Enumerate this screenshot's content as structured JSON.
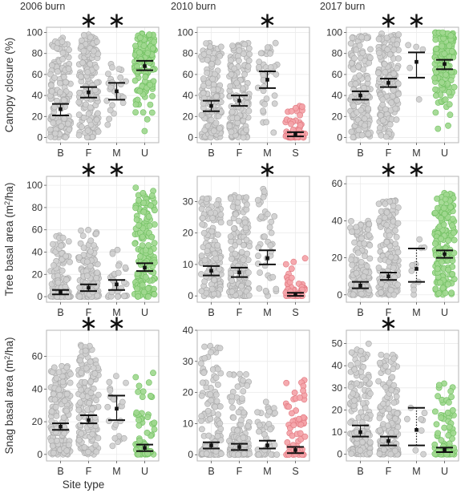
{
  "figure": {
    "xlabel": "Site type",
    "columns": [
      "2006 burn",
      "2010 burn",
      "2017 burn"
    ],
    "row_ylabels": [
      "Canopy closure (%)",
      "Tree basal area (m²/ha)",
      "Snag basal area (m²/ha)"
    ],
    "colors": {
      "grey_fill": "#cfcfcf",
      "grey_stroke": "#a8a8a8",
      "green_fill": "#9fd88f",
      "green_stroke": "#6fbf5f",
      "red_fill": "#f4a3a8",
      "red_stroke": "#e0767e",
      "panel_border": "#b5b5b5",
      "grid": "#ebebeb",
      "axis_text": "#333333"
    }
  },
  "chart_data": [
    {
      "type": "scatter",
      "row": 0,
      "col": 0,
      "column_title": "2006 burn",
      "ylabel": "Canopy closure (%)",
      "categories": [
        "B",
        "F",
        "M",
        "U"
      ],
      "ylim": [
        -5,
        105
      ],
      "yticks": [
        0,
        20,
        40,
        60,
        80,
        100
      ],
      "point_colors": [
        "grey",
        "grey",
        "grey",
        "green"
      ],
      "significant": [
        "F",
        "M"
      ],
      "groups": [
        {
          "category": "B",
          "n": 150,
          "range": [
            0,
            95
          ],
          "skew": 1.4,
          "mean": 27,
          "ci": [
            21,
            32
          ],
          "ci_style": "solid"
        },
        {
          "category": "F",
          "n": 150,
          "range": [
            0,
            98
          ],
          "skew": 1.0,
          "mean": 43,
          "ci": [
            38,
            48
          ],
          "ci_style": "solid"
        },
        {
          "category": "M",
          "n": 25,
          "range": [
            12,
            70
          ],
          "skew": 1.0,
          "mean": 44,
          "ci": [
            36,
            52
          ],
          "ci_style": "solid"
        },
        {
          "category": "U",
          "n": 140,
          "range": [
            0,
            99
          ],
          "skew": 0.45,
          "mean": 68,
          "ci": [
            64,
            73
          ],
          "ci_style": "solid"
        }
      ]
    },
    {
      "type": "scatter",
      "row": 0,
      "col": 1,
      "column_title": "2010 burn",
      "ylabel": "",
      "categories": [
        "B",
        "F",
        "M",
        "S"
      ],
      "ylim": [
        -5,
        105
      ],
      "yticks": [
        0,
        20,
        40,
        60,
        80,
        100
      ],
      "point_colors": [
        "grey",
        "grey",
        "grey",
        "red"
      ],
      "significant": [
        "M"
      ],
      "groups": [
        {
          "category": "B",
          "n": 150,
          "range": [
            0,
            90
          ],
          "skew": 1.5,
          "mean": 30,
          "ci": [
            25,
            35
          ],
          "ci_style": "solid"
        },
        {
          "category": "F",
          "n": 150,
          "range": [
            0,
            90
          ],
          "skew": 1.3,
          "mean": 35,
          "ci": [
            30,
            40
          ],
          "ci_style": "solid"
        },
        {
          "category": "M",
          "n": 40,
          "range": [
            4,
            90
          ],
          "skew": 0.8,
          "mean": 55,
          "ci": [
            47,
            63
          ],
          "ci_style": "solid"
        },
        {
          "category": "S",
          "n": 50,
          "range": [
            0,
            30
          ],
          "skew": 2.5,
          "mean": 3,
          "ci": [
            1,
            5
          ],
          "ci_style": "solid"
        }
      ]
    },
    {
      "type": "scatter",
      "row": 0,
      "col": 2,
      "column_title": "2017 burn",
      "ylabel": "",
      "categories": [
        "B",
        "F",
        "M",
        "U"
      ],
      "ylim": [
        -5,
        105
      ],
      "yticks": [
        0,
        20,
        40,
        60,
        80,
        100
      ],
      "point_colors": [
        "grey",
        "grey",
        "grey",
        "green"
      ],
      "significant": [
        "F",
        "M"
      ],
      "groups": [
        {
          "category": "B",
          "n": 150,
          "range": [
            0,
            97
          ],
          "skew": 1.1,
          "mean": 40,
          "ci": [
            36,
            44
          ],
          "ci_style": "solid"
        },
        {
          "category": "F",
          "n": 150,
          "range": [
            0,
            99
          ],
          "skew": 0.8,
          "mean": 52,
          "ci": [
            48,
            56
          ],
          "ci_style": "solid"
        },
        {
          "category": "M",
          "n": 5,
          "range": [
            35,
            88
          ],
          "skew": 0.6,
          "mean": 72,
          "ci": [
            57,
            81
          ],
          "ci_style": "solid"
        },
        {
          "category": "U",
          "n": 150,
          "range": [
            0,
            100
          ],
          "skew": 0.4,
          "mean": 70,
          "ci": [
            65,
            74
          ],
          "ci_style": "solid"
        }
      ]
    },
    {
      "type": "scatter",
      "row": 1,
      "col": 0,
      "column_title": "",
      "ylabel": "Tree basal area (m²/ha)",
      "categories": [
        "B",
        "F",
        "M",
        "U"
      ],
      "ylim": [
        -5,
        108
      ],
      "yticks": [
        0,
        20,
        40,
        60,
        80,
        100
      ],
      "point_colors": [
        "grey",
        "grey",
        "grey",
        "green"
      ],
      "significant": [
        "F",
        "M"
      ],
      "groups": [
        {
          "category": "B",
          "n": 120,
          "range": [
            0,
            55
          ],
          "skew": 3.0,
          "mean": 4,
          "ci": [
            2,
            6
          ],
          "ci_style": "solid"
        },
        {
          "category": "F",
          "n": 140,
          "range": [
            0,
            60
          ],
          "skew": 2.6,
          "mean": 8,
          "ci": [
            5,
            11
          ],
          "ci_style": "solid"
        },
        {
          "category": "M",
          "n": 30,
          "range": [
            0,
            42
          ],
          "skew": 2.0,
          "mean": 11,
          "ci": [
            6,
            15
          ],
          "ci_style": "solid"
        },
        {
          "category": "U",
          "n": 150,
          "range": [
            0,
            98
          ],
          "skew": 1.7,
          "mean": 26,
          "ci": [
            23,
            30
          ],
          "ci_style": "solid"
        }
      ]
    },
    {
      "type": "scatter",
      "row": 1,
      "col": 1,
      "column_title": "",
      "ylabel": "",
      "categories": [
        "B",
        "F",
        "M",
        "S"
      ],
      "ylim": [
        -2,
        38
      ],
      "yticks": [
        0,
        10,
        20,
        30
      ],
      "point_colors": [
        "grey",
        "grey",
        "grey",
        "red"
      ],
      "significant": [
        "M"
      ],
      "groups": [
        {
          "category": "B",
          "n": 150,
          "range": [
            0,
            31
          ],
          "skew": 1.4,
          "mean": 8,
          "ci": [
            6.5,
            9.5
          ],
          "ci_style": "solid"
        },
        {
          "category": "F",
          "n": 150,
          "range": [
            0,
            32
          ],
          "skew": 1.4,
          "mean": 7.5,
          "ci": [
            6,
            9
          ],
          "ci_style": "solid"
        },
        {
          "category": "M",
          "n": 40,
          "range": [
            0,
            34
          ],
          "skew": 1.0,
          "mean": 12,
          "ci": [
            10,
            14.5
          ],
          "ci_style": "solid"
        },
        {
          "category": "S",
          "n": 40,
          "range": [
            0,
            12
          ],
          "skew": 3.2,
          "mean": 0.5,
          "ci": [
            0,
            1
          ],
          "ci_style": "solid"
        }
      ]
    },
    {
      "type": "scatter",
      "row": 1,
      "col": 2,
      "column_title": "",
      "ylabel": "",
      "categories": [
        "B",
        "F",
        "M",
        "U"
      ],
      "ylim": [
        -4,
        64
      ],
      "yticks": [
        0,
        20,
        40,
        60
      ],
      "point_colors": [
        "grey",
        "grey",
        "grey",
        "green"
      ],
      "significant": [
        "F",
        "M"
      ],
      "groups": [
        {
          "category": "B",
          "n": 150,
          "range": [
            0,
            40
          ],
          "skew": 1.9,
          "mean": 5,
          "ci": [
            3.5,
            7
          ],
          "ci_style": "solid"
        },
        {
          "category": "F",
          "n": 150,
          "range": [
            0,
            51
          ],
          "skew": 1.5,
          "mean": 10,
          "ci": [
            8,
            12
          ],
          "ci_style": "solid"
        },
        {
          "category": "M",
          "n": 10,
          "range": [
            0,
            30
          ],
          "skew": 1.0,
          "mean": 14,
          "ci": [
            7,
            25
          ],
          "ci_style": "dotted"
        },
        {
          "category": "U",
          "n": 150,
          "range": [
            0,
            55
          ],
          "skew": 1.0,
          "mean": 22,
          "ci": [
            20,
            24
          ],
          "ci_style": "solid"
        }
      ]
    },
    {
      "type": "scatter",
      "row": 2,
      "col": 0,
      "column_title": "",
      "ylabel": "Snag basal area (m²/ha)",
      "categories": [
        "B",
        "F",
        "M",
        "U"
      ],
      "ylim": [
        -4,
        76
      ],
      "yticks": [
        0,
        20,
        40,
        60
      ],
      "point_colors": [
        "grey",
        "grey",
        "grey",
        "green"
      ],
      "significant": [
        "F",
        "M"
      ],
      "groups": [
        {
          "category": "B",
          "n": 150,
          "range": [
            0,
            54
          ],
          "skew": 1.3,
          "mean": 17,
          "ci": [
            15,
            19
          ],
          "ci_style": "solid"
        },
        {
          "category": "F",
          "n": 150,
          "range": [
            0,
            67
          ],
          "skew": 1.2,
          "mean": 21,
          "ci": [
            19,
            24
          ],
          "ci_style": "solid"
        },
        {
          "category": "M",
          "n": 25,
          "range": [
            5,
            48
          ],
          "skew": 0.9,
          "mean": 28,
          "ci": [
            21,
            36
          ],
          "ci_style": "solid"
        },
        {
          "category": "U",
          "n": 60,
          "range": [
            0,
            50
          ],
          "skew": 2.5,
          "mean": 4,
          "ci": [
            2,
            6
          ],
          "ci_style": "solid"
        }
      ]
    },
    {
      "type": "scatter",
      "row": 2,
      "col": 1,
      "column_title": "",
      "ylabel": "",
      "categories": [
        "B",
        "F",
        "M",
        "S"
      ],
      "ylim": [
        -2,
        40
      ],
      "yticks": [
        0,
        10,
        20,
        30,
        40
      ],
      "point_colors": [
        "grey",
        "grey",
        "grey",
        "red"
      ],
      "significant": [],
      "groups": [
        {
          "category": "B",
          "n": 120,
          "range": [
            0,
            35
          ],
          "skew": 2.5,
          "mean": 3,
          "ci": [
            2,
            4
          ],
          "ci_style": "solid"
        },
        {
          "category": "F",
          "n": 120,
          "range": [
            0,
            26
          ],
          "skew": 2.7,
          "mean": 2.5,
          "ci": [
            1.5,
            3.5
          ],
          "ci_style": "solid"
        },
        {
          "category": "M",
          "n": 40,
          "range": [
            0,
            17
          ],
          "skew": 2.0,
          "mean": 3,
          "ci": [
            2,
            4.5
          ],
          "ci_style": "solid"
        },
        {
          "category": "S",
          "n": 60,
          "range": [
            0,
            24
          ],
          "skew": 2.4,
          "mean": 1.5,
          "ci": [
            0.5,
            2.5
          ],
          "ci_style": "solid"
        }
      ]
    },
    {
      "type": "scatter",
      "row": 2,
      "col": 2,
      "column_title": "",
      "ylabel": "",
      "categories": [
        "B",
        "F",
        "M",
        "U"
      ],
      "ylim": [
        -3,
        56
      ],
      "yticks": [
        0,
        10,
        20,
        30,
        40,
        50
      ],
      "point_colors": [
        "grey",
        "grey",
        "grey",
        "green"
      ],
      "significant": [
        "F"
      ],
      "groups": [
        {
          "category": "B",
          "n": 150,
          "range": [
            0,
            50
          ],
          "skew": 1.6,
          "mean": 10,
          "ci": [
            8,
            13
          ],
          "ci_style": "solid"
        },
        {
          "category": "F",
          "n": 150,
          "range": [
            0,
            45
          ],
          "skew": 2.0,
          "mean": 6,
          "ci": [
            4,
            8
          ],
          "ci_style": "solid"
        },
        {
          "category": "M",
          "n": 8,
          "range": [
            0,
            21
          ],
          "skew": 1.0,
          "mean": 11,
          "ci": [
            4,
            21
          ],
          "ci_style": "dotted"
        },
        {
          "category": "U",
          "n": 80,
          "range": [
            0,
            32
          ],
          "skew": 2.5,
          "mean": 2,
          "ci": [
            1,
            3
          ],
          "ci_style": "solid"
        }
      ]
    }
  ]
}
